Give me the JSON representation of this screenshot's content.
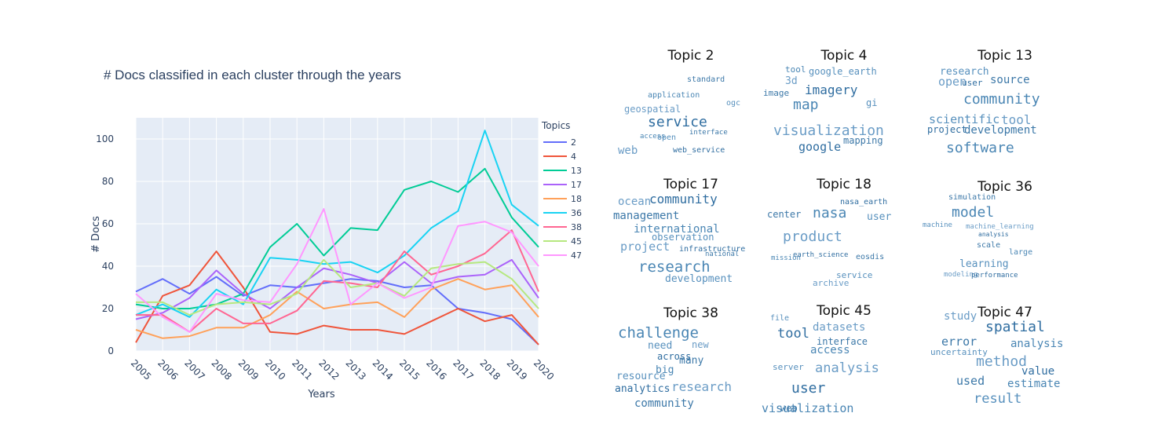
{
  "chart_data": [
    {
      "type": "line",
      "title": "# Docs classified in each cluster through the years",
      "xlabel": "Years",
      "ylabel": "# Docs",
      "legend_title": "Topics",
      "legend_position": "right",
      "grid": true,
      "ylim": [
        0,
        110
      ],
      "yticks": [
        0,
        20,
        40,
        60,
        80,
        100
      ],
      "x": [
        "2005",
        "2006",
        "2007",
        "2008",
        "2009",
        "2010",
        "2011",
        "2012",
        "2013",
        "2014",
        "2015",
        "2016",
        "2017",
        "2018",
        "2019",
        "2020"
      ],
      "series": [
        {
          "name": "2",
          "color": "#636efa",
          "values": [
            28,
            34,
            27,
            35,
            26,
            31,
            30,
            32,
            34,
            33,
            30,
            31,
            20,
            18,
            15,
            3
          ]
        },
        {
          "name": "4",
          "color": "#ef553b",
          "values": [
            4,
            26,
            31,
            47,
            30,
            9,
            8,
            12,
            10,
            10,
            8,
            14,
            20,
            14,
            17,
            3
          ]
        },
        {
          "name": "13",
          "color": "#00cc96",
          "values": [
            22,
            20,
            20,
            22,
            27,
            49,
            60,
            45,
            58,
            57,
            76,
            80,
            75,
            86,
            63,
            49
          ]
        },
        {
          "name": "17",
          "color": "#ab63fa",
          "values": [
            15,
            18,
            25,
            38,
            27,
            20,
            30,
            39,
            36,
            32,
            42,
            32,
            35,
            36,
            43,
            25
          ]
        },
        {
          "name": "18",
          "color": "#ffa15a",
          "values": [
            10,
            6,
            7,
            11,
            11,
            17,
            28,
            20,
            22,
            23,
            16,
            29,
            34,
            29,
            31,
            16
          ]
        },
        {
          "name": "36",
          "color": "#19d3f3",
          "values": [
            17,
            22,
            16,
            29,
            22,
            44,
            43,
            41,
            42,
            37,
            45,
            58,
            66,
            104,
            69,
            59
          ]
        },
        {
          "name": "38",
          "color": "#ff6692",
          "values": [
            17,
            17,
            9,
            20,
            13,
            13,
            19,
            33,
            32,
            30,
            47,
            36,
            40,
            46,
            57,
            28
          ]
        },
        {
          "name": "45",
          "color": "#b6e880",
          "values": [
            23,
            23,
            17,
            22,
            23,
            22,
            27,
            43,
            30,
            32,
            26,
            39,
            41,
            42,
            34,
            20
          ]
        },
        {
          "name": "47",
          "color": "#ff97ff",
          "values": [
            27,
            16,
            9,
            27,
            24,
            23,
            41,
            67,
            22,
            32,
            25,
            30,
            59,
            61,
            56,
            40
          ]
        }
      ]
    }
  ],
  "wordclouds": [
    {
      "title": "Topic 2",
      "words": [
        {
          "t": "standard",
          "s": 10
        },
        {
          "t": "application",
          "s": 10
        },
        {
          "t": "ogc",
          "s": 10
        },
        {
          "t": "geospatial",
          "s": 12
        },
        {
          "t": "service",
          "s": 18
        },
        {
          "t": "interface",
          "s": 9
        },
        {
          "t": "access",
          "s": 9
        },
        {
          "t": "open",
          "s": 10
        },
        {
          "t": "web",
          "s": 14
        },
        {
          "t": "web_service",
          "s": 10
        }
      ]
    },
    {
      "title": "Topic 4",
      "words": [
        {
          "t": "tool",
          "s": 11
        },
        {
          "t": "google_earth",
          "s": 12
        },
        {
          "t": "3d",
          "s": 13
        },
        {
          "t": "imagery",
          "s": 16
        },
        {
          "t": "image",
          "s": 11
        },
        {
          "t": "map",
          "s": 18
        },
        {
          "t": "gi",
          "s": 12
        },
        {
          "t": "visualization",
          "s": 18
        },
        {
          "t": "google",
          "s": 15
        },
        {
          "t": "mapping",
          "s": 12
        }
      ]
    },
    {
      "title": "Topic 13",
      "words": [
        {
          "t": "research",
          "s": 13
        },
        {
          "t": "open",
          "s": 15
        },
        {
          "t": "user",
          "s": 11
        },
        {
          "t": "source",
          "s": 14
        },
        {
          "t": "community",
          "s": 18
        },
        {
          "t": "scientific",
          "s": 15
        },
        {
          "t": "tool",
          "s": 16
        },
        {
          "t": "project",
          "s": 12
        },
        {
          "t": "development",
          "s": 14
        },
        {
          "t": "software",
          "s": 18
        }
      ]
    },
    {
      "title": "Topic 17",
      "words": [
        {
          "t": "ocean",
          "s": 14
        },
        {
          "t": "community",
          "s": 16
        },
        {
          "t": "management",
          "s": 14
        },
        {
          "t": "international",
          "s": 14
        },
        {
          "t": "observation",
          "s": 12
        },
        {
          "t": "project",
          "s": 15
        },
        {
          "t": "infrastructure",
          "s": 10
        },
        {
          "t": "national",
          "s": 9
        },
        {
          "t": "research",
          "s": 19
        },
        {
          "t": "development",
          "s": 13
        }
      ]
    },
    {
      "title": "Topic 18",
      "words": [
        {
          "t": "nasa_earth",
          "s": 10
        },
        {
          "t": "center",
          "s": 12
        },
        {
          "t": "nasa",
          "s": 18
        },
        {
          "t": "user",
          "s": 13
        },
        {
          "t": "product",
          "s": 18
        },
        {
          "t": "earth_science",
          "s": 9
        },
        {
          "t": "eosdis",
          "s": 10
        },
        {
          "t": "mission",
          "s": 9
        },
        {
          "t": "service",
          "s": 11
        },
        {
          "t": "archive",
          "s": 11
        }
      ]
    },
    {
      "title": "Topic 36",
      "words": [
        {
          "t": "simulation",
          "s": 10
        },
        {
          "t": "model",
          "s": 18
        },
        {
          "t": "machine",
          "s": 9
        },
        {
          "t": "machine_learning",
          "s": 9
        },
        {
          "t": "analysis",
          "s": 8
        },
        {
          "t": "scale",
          "s": 10
        },
        {
          "t": "large",
          "s": 10
        },
        {
          "t": "learning",
          "s": 13
        },
        {
          "t": "modeling",
          "s": 9
        },
        {
          "t": "performance",
          "s": 9
        }
      ]
    },
    {
      "title": "Topic 38",
      "words": [
        {
          "t": "challenge",
          "s": 19
        },
        {
          "t": "need",
          "s": 13
        },
        {
          "t": "new",
          "s": 12
        },
        {
          "t": "across",
          "s": 12
        },
        {
          "t": "many",
          "s": 13
        },
        {
          "t": "big",
          "s": 13
        },
        {
          "t": "resource",
          "s": 13
        },
        {
          "t": "research",
          "s": 16
        },
        {
          "t": "analytics",
          "s": 13
        },
        {
          "t": "community",
          "s": 14
        }
      ]
    },
    {
      "title": "Topic 45",
      "words": [
        {
          "t": "file",
          "s": 10
        },
        {
          "t": "datasets",
          "s": 14
        },
        {
          "t": "tool",
          "s": 17
        },
        {
          "t": "interface",
          "s": 12
        },
        {
          "t": "access",
          "s": 14
        },
        {
          "t": "server",
          "s": 11
        },
        {
          "t": "analysis",
          "s": 17
        },
        {
          "t": "user",
          "s": 18
        },
        {
          "t": "web",
          "s": 12
        },
        {
          "t": "visualization",
          "s": 15
        }
      ]
    },
    {
      "title": "Topic 47",
      "words": [
        {
          "t": "study",
          "s": 14
        },
        {
          "t": "spatial",
          "s": 18
        },
        {
          "t": "error",
          "s": 15
        },
        {
          "t": "analysis",
          "s": 14
        },
        {
          "t": "uncertainty",
          "s": 11
        },
        {
          "t": "method",
          "s": 18
        },
        {
          "t": "value",
          "s": 14
        },
        {
          "t": "used",
          "s": 15
        },
        {
          "t": "estimate",
          "s": 14
        },
        {
          "t": "result",
          "s": 17
        }
      ]
    }
  ]
}
